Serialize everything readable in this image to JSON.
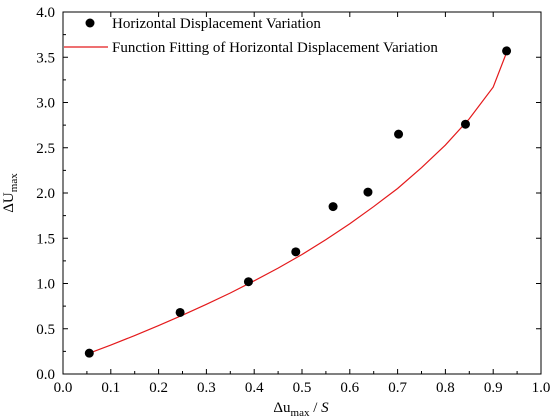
{
  "chart_data": {
    "type": "scatter",
    "series": [
      {
        "name": "Horizontal Displacement Variation",
        "kind": "scatter",
        "color": "#000000",
        "points": [
          {
            "x": 0.055,
            "y": 0.23
          },
          {
            "x": 0.245,
            "y": 0.68
          },
          {
            "x": 0.388,
            "y": 1.02
          },
          {
            "x": 0.487,
            "y": 1.35
          },
          {
            "x": 0.565,
            "y": 1.85
          },
          {
            "x": 0.638,
            "y": 2.01
          },
          {
            "x": 0.702,
            "y": 2.65
          },
          {
            "x": 0.842,
            "y": 2.76
          },
          {
            "x": 0.928,
            "y": 3.57
          }
        ]
      },
      {
        "name": "Function Fitting of Horizontal Displacement Variation",
        "kind": "line",
        "color": "#e41a1c",
        "points": [
          {
            "x": 0.05,
            "y": 0.22
          },
          {
            "x": 0.1,
            "y": 0.32
          },
          {
            "x": 0.15,
            "y": 0.425
          },
          {
            "x": 0.2,
            "y": 0.535
          },
          {
            "x": 0.25,
            "y": 0.65
          },
          {
            "x": 0.3,
            "y": 0.77
          },
          {
            "x": 0.35,
            "y": 0.895
          },
          {
            "x": 0.4,
            "y": 1.03
          },
          {
            "x": 0.45,
            "y": 1.17
          },
          {
            "x": 0.5,
            "y": 1.32
          },
          {
            "x": 0.55,
            "y": 1.485
          },
          {
            "x": 0.6,
            "y": 1.66
          },
          {
            "x": 0.65,
            "y": 1.85
          },
          {
            "x": 0.7,
            "y": 2.05
          },
          {
            "x": 0.75,
            "y": 2.28
          },
          {
            "x": 0.8,
            "y": 2.53
          },
          {
            "x": 0.85,
            "y": 2.82
          },
          {
            "x": 0.9,
            "y": 3.17
          },
          {
            "x": 0.93,
            "y": 3.58
          }
        ]
      }
    ],
    "xlabel": {
      "main": "Δu",
      "sub": "max",
      "suffix_sep": " / ",
      "suffix": "S"
    },
    "ylabel": {
      "main": "ΔU",
      "sub": "max"
    },
    "xlim": [
      0.0,
      1.0
    ],
    "ylim": [
      0.0,
      4.0
    ],
    "xticks": [
      "0.0",
      "0.1",
      "0.2",
      "0.3",
      "0.4",
      "0.5",
      "0.6",
      "0.7",
      "0.8",
      "0.9",
      "1.0"
    ],
    "yticks": [
      "0.0",
      "0.5",
      "1.0",
      "1.5",
      "2.0",
      "2.5",
      "3.0",
      "3.5",
      "4.0"
    ],
    "grid": false,
    "legend_position": "top-left"
  }
}
